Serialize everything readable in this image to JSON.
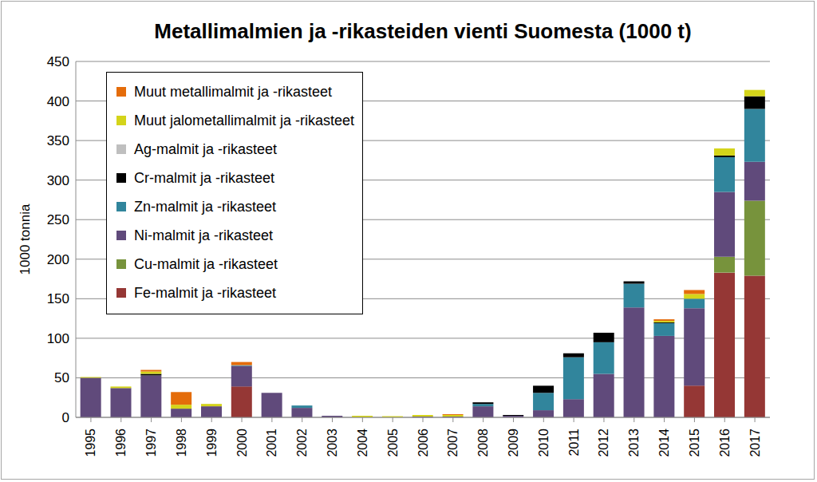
{
  "chart_data": {
    "type": "bar",
    "title": "Metallimalmien ja -rikasteiden vienti Suomesta (1000 t)",
    "y_label": "1000 tonnia",
    "categories": [
      "1995",
      "1996",
      "1997",
      "1998",
      "1999",
      "2000",
      "2001",
      "2002",
      "2003",
      "2004",
      "2005",
      "2006",
      "2007",
      "2008",
      "2009",
      "2010",
      "2011",
      "2012",
      "2013",
      "2014",
      "2015",
      "2016",
      "2017"
    ],
    "stacked": true,
    "grid": true,
    "legend": "upper left",
    "ylim": [
      0,
      450
    ],
    "yticks": [
      0,
      50,
      100,
      150,
      200,
      250,
      300,
      350,
      400,
      450
    ],
    "series": [
      {
        "name": "Fe-malmit ja -rikasteet",
        "color": "#953735",
        "values": [
          0,
          0,
          0,
          0,
          0,
          39,
          0,
          0,
          0,
          0,
          0,
          0,
          0,
          0,
          0,
          0,
          0,
          0,
          0,
          0,
          40,
          183,
          179
        ]
      },
      {
        "name": "Cu-malmit ja -rikasteet",
        "color": "#77933c",
        "values": [
          0,
          0,
          0,
          0,
          0,
          0,
          0,
          0,
          0,
          0,
          0,
          0,
          0,
          0,
          0,
          0,
          0,
          0,
          0,
          0,
          0,
          20,
          95
        ]
      },
      {
        "name": "Ni-malmit ja -rikasteet",
        "color": "#604a7b",
        "values": [
          50,
          37,
          53,
          11,
          14,
          26,
          31,
          12,
          2,
          0,
          0,
          1,
          1,
          14,
          2,
          9,
          23,
          55,
          139,
          103,
          98,
          82,
          49
        ]
      },
      {
        "name": "Zn-malmit ja -rikasteet",
        "color": "#31859c",
        "values": [
          0,
          0,
          0,
          0,
          0,
          1,
          0,
          3,
          0,
          0,
          0,
          0,
          0,
          3,
          0,
          22,
          53,
          40,
          30,
          16,
          12,
          44,
          67
        ]
      },
      {
        "name": "Cr-malmit ja -rikasteet",
        "color": "#000000",
        "values": [
          0,
          0,
          2,
          0,
          0,
          0,
          0,
          0,
          0,
          0,
          0,
          0,
          0,
          2,
          1,
          9,
          5,
          12,
          3,
          1,
          0,
          2,
          16
        ]
      },
      {
        "name": "Ag-malmit ja -rikasteet",
        "color": "#bfbfbf",
        "values": [
          0,
          0,
          0,
          0,
          0,
          0,
          0,
          0,
          0,
          0,
          0,
          0,
          0,
          0,
          0,
          0,
          0,
          0,
          0,
          0,
          0,
          0,
          0
        ]
      },
      {
        "name": "Muut jalometallimalmit ja -rikasteet",
        "color": "#d4d41a",
        "values": [
          1,
          2,
          3,
          5,
          3,
          0,
          0,
          0,
          0,
          2,
          1.5,
          2,
          2,
          0,
          0,
          0,
          0,
          0,
          0,
          2,
          6,
          9,
          8
        ]
      },
      {
        "name": "Muut metallimalmit ja -rikasteet",
        "color": "#e46c0a",
        "values": [
          0,
          0,
          2,
          16,
          0,
          4,
          0,
          0,
          0,
          0,
          0,
          0,
          1,
          0,
          0,
          0,
          0,
          0,
          0,
          2,
          5,
          0,
          0
        ]
      }
    ]
  }
}
